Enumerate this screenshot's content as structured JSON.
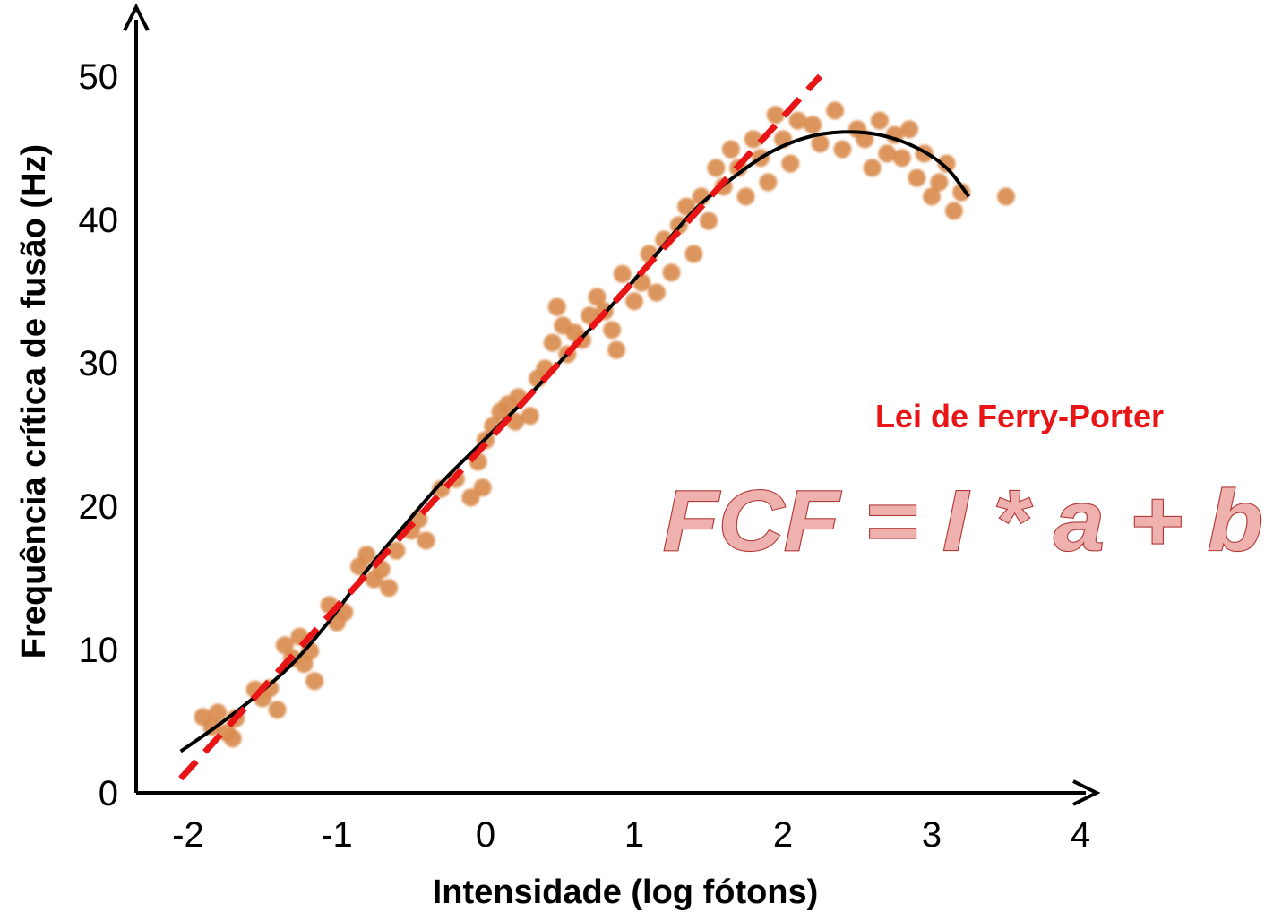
{
  "chart_data": {
    "type": "scatter",
    "xlabel": "Intensidade (log fótons)",
    "ylabel": "Frequência crítica de fusão (Hz)",
    "x_ticks": [
      "-2",
      "-1",
      "0",
      "1",
      "2",
      "3",
      "4"
    ],
    "y_ticks": [
      "0",
      "10",
      "20",
      "30",
      "40",
      "50"
    ],
    "xlim": [
      -2.35,
      4.0
    ],
    "ylim": [
      0,
      50
    ],
    "grid": false,
    "law_title": "Lei de Ferry-Porter",
    "formula": "FCF = I * a + b",
    "colors": {
      "points": "#d98c4e",
      "fit_curve": "#000000",
      "linear_law": "#e81416",
      "formula_fill": "#efb1ae",
      "formula_stroke": "#b13a38"
    },
    "series": [
      {
        "kind": "points",
        "points": [
          [
            -1.9,
            5.3
          ],
          [
            -1.84,
            4.6
          ],
          [
            -1.8,
            5.6
          ],
          [
            -1.74,
            4.2
          ],
          [
            -1.7,
            3.8
          ],
          [
            -1.68,
            5.2
          ],
          [
            -1.55,
            7.2
          ],
          [
            -1.5,
            6.6
          ],
          [
            -1.45,
            7.3
          ],
          [
            -1.4,
            5.8
          ],
          [
            -1.35,
            10.3
          ],
          [
            -1.3,
            9.4
          ],
          [
            -1.25,
            10.9
          ],
          [
            -1.22,
            9.0
          ],
          [
            -1.18,
            9.9
          ],
          [
            -1.15,
            7.8
          ],
          [
            -1.05,
            13.1
          ],
          [
            -1.0,
            11.9
          ],
          [
            -0.95,
            12.6
          ],
          [
            -0.85,
            15.8
          ],
          [
            -0.8,
            16.6
          ],
          [
            -0.75,
            14.9
          ],
          [
            -0.7,
            15.6
          ],
          [
            -0.65,
            14.3
          ],
          [
            -0.6,
            16.9
          ],
          [
            -0.5,
            18.3
          ],
          [
            -0.45,
            19.1
          ],
          [
            -0.4,
            17.6
          ],
          [
            -0.3,
            21.2
          ],
          [
            -0.2,
            21.9
          ],
          [
            -0.1,
            20.6
          ],
          [
            -0.05,
            23.1
          ],
          [
            -0.02,
            21.3
          ],
          [
            0.0,
            24.6
          ],
          [
            0.05,
            25.6
          ],
          [
            0.1,
            26.6
          ],
          [
            0.15,
            27.1
          ],
          [
            0.2,
            25.9
          ],
          [
            0.22,
            27.6
          ],
          [
            0.3,
            26.3
          ],
          [
            0.35,
            28.9
          ],
          [
            0.4,
            29.6
          ],
          [
            0.45,
            31.4
          ],
          [
            0.48,
            33.9
          ],
          [
            0.52,
            32.6
          ],
          [
            0.55,
            30.6
          ],
          [
            0.6,
            32.1
          ],
          [
            0.65,
            31.6
          ],
          [
            0.7,
            33.3
          ],
          [
            0.75,
            34.6
          ],
          [
            0.8,
            33.6
          ],
          [
            0.85,
            32.3
          ],
          [
            0.88,
            30.9
          ],
          [
            0.92,
            36.2
          ],
          [
            1.0,
            34.3
          ],
          [
            1.05,
            35.6
          ],
          [
            1.1,
            37.6
          ],
          [
            1.15,
            34.9
          ],
          [
            1.2,
            38.6
          ],
          [
            1.25,
            36.3
          ],
          [
            1.3,
            39.6
          ],
          [
            1.35,
            40.9
          ],
          [
            1.4,
            37.6
          ],
          [
            1.45,
            41.6
          ],
          [
            1.5,
            39.9
          ],
          [
            1.55,
            43.6
          ],
          [
            1.6,
            42.3
          ],
          [
            1.65,
            44.9
          ],
          [
            1.7,
            43.6
          ],
          [
            1.75,
            41.6
          ],
          [
            1.8,
            45.6
          ],
          [
            1.85,
            44.3
          ],
          [
            1.9,
            42.6
          ],
          [
            1.95,
            47.3
          ],
          [
            2.0,
            45.6
          ],
          [
            2.05,
            43.9
          ],
          [
            2.1,
            46.9
          ],
          [
            2.2,
            46.6
          ],
          [
            2.25,
            45.3
          ],
          [
            2.35,
            47.6
          ],
          [
            2.4,
            44.9
          ],
          [
            2.5,
            46.3
          ],
          [
            2.55,
            45.6
          ],
          [
            2.6,
            43.6
          ],
          [
            2.65,
            46.9
          ],
          [
            2.7,
            44.6
          ],
          [
            2.75,
            45.9
          ],
          [
            2.8,
            44.3
          ],
          [
            2.85,
            46.3
          ],
          [
            2.9,
            42.9
          ],
          [
            2.95,
            44.6
          ],
          [
            3.0,
            41.6
          ],
          [
            3.05,
            42.6
          ],
          [
            3.1,
            43.9
          ],
          [
            3.15,
            40.6
          ],
          [
            3.2,
            41.9
          ],
          [
            3.5,
            41.6
          ]
        ]
      },
      {
        "kind": "fit-curve",
        "points": [
          [
            -2.05,
            2.9
          ],
          [
            -1.8,
            4.7
          ],
          [
            -1.55,
            6.7
          ],
          [
            -1.3,
            9.0
          ],
          [
            -1.05,
            12.0
          ],
          [
            -0.8,
            15.5
          ],
          [
            -0.55,
            18.6
          ],
          [
            -0.3,
            21.6
          ],
          [
            0.0,
            24.7
          ],
          [
            0.3,
            27.8
          ],
          [
            0.6,
            31.2
          ],
          [
            0.9,
            34.6
          ],
          [
            1.15,
            37.6
          ],
          [
            1.4,
            40.6
          ],
          [
            1.65,
            42.8
          ],
          [
            1.9,
            44.6
          ],
          [
            2.15,
            45.7
          ],
          [
            2.4,
            46.1
          ],
          [
            2.65,
            45.9
          ],
          [
            2.9,
            45.0
          ],
          [
            3.1,
            43.6
          ],
          [
            3.25,
            41.6
          ]
        ]
      },
      {
        "kind": "linear-law",
        "points": [
          [
            -2.05,
            1.0
          ],
          [
            2.25,
            50.0
          ]
        ]
      }
    ]
  }
}
